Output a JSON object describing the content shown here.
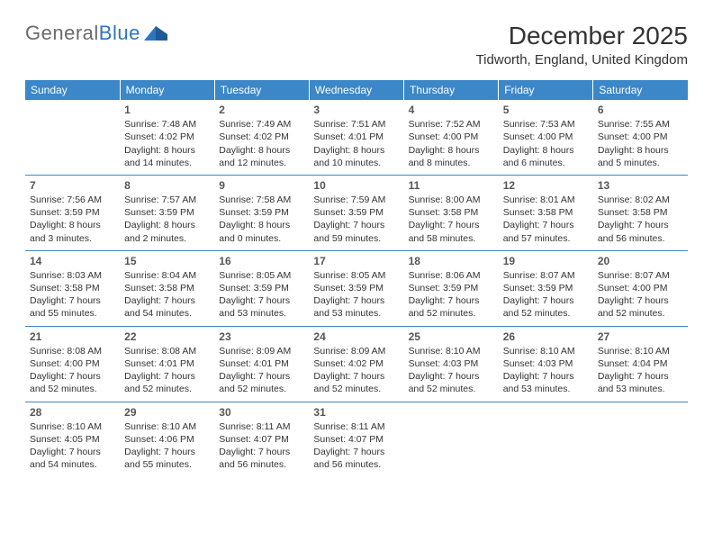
{
  "logo": {
    "text1": "General",
    "text2": "Blue"
  },
  "title": "December 2025",
  "location": "Tidworth, England, United Kingdom",
  "header_bg": "#3b87c8",
  "header_text_color": "#ffffff",
  "border_color": "#3b87c8",
  "day_headers": [
    "Sunday",
    "Monday",
    "Tuesday",
    "Wednesday",
    "Thursday",
    "Friday",
    "Saturday"
  ],
  "weeks": [
    [
      null,
      {
        "n": "1",
        "sr": "Sunrise: 7:48 AM",
        "ss": "Sunset: 4:02 PM",
        "dl": "Daylight: 8 hours and 14 minutes."
      },
      {
        "n": "2",
        "sr": "Sunrise: 7:49 AM",
        "ss": "Sunset: 4:02 PM",
        "dl": "Daylight: 8 hours and 12 minutes."
      },
      {
        "n": "3",
        "sr": "Sunrise: 7:51 AM",
        "ss": "Sunset: 4:01 PM",
        "dl": "Daylight: 8 hours and 10 minutes."
      },
      {
        "n": "4",
        "sr": "Sunrise: 7:52 AM",
        "ss": "Sunset: 4:00 PM",
        "dl": "Daylight: 8 hours and 8 minutes."
      },
      {
        "n": "5",
        "sr": "Sunrise: 7:53 AM",
        "ss": "Sunset: 4:00 PM",
        "dl": "Daylight: 8 hours and 6 minutes."
      },
      {
        "n": "6",
        "sr": "Sunrise: 7:55 AM",
        "ss": "Sunset: 4:00 PM",
        "dl": "Daylight: 8 hours and 5 minutes."
      }
    ],
    [
      {
        "n": "7",
        "sr": "Sunrise: 7:56 AM",
        "ss": "Sunset: 3:59 PM",
        "dl": "Daylight: 8 hours and 3 minutes."
      },
      {
        "n": "8",
        "sr": "Sunrise: 7:57 AM",
        "ss": "Sunset: 3:59 PM",
        "dl": "Daylight: 8 hours and 2 minutes."
      },
      {
        "n": "9",
        "sr": "Sunrise: 7:58 AM",
        "ss": "Sunset: 3:59 PM",
        "dl": "Daylight: 8 hours and 0 minutes."
      },
      {
        "n": "10",
        "sr": "Sunrise: 7:59 AM",
        "ss": "Sunset: 3:59 PM",
        "dl": "Daylight: 7 hours and 59 minutes."
      },
      {
        "n": "11",
        "sr": "Sunrise: 8:00 AM",
        "ss": "Sunset: 3:58 PM",
        "dl": "Daylight: 7 hours and 58 minutes."
      },
      {
        "n": "12",
        "sr": "Sunrise: 8:01 AM",
        "ss": "Sunset: 3:58 PM",
        "dl": "Daylight: 7 hours and 57 minutes."
      },
      {
        "n": "13",
        "sr": "Sunrise: 8:02 AM",
        "ss": "Sunset: 3:58 PM",
        "dl": "Daylight: 7 hours and 56 minutes."
      }
    ],
    [
      {
        "n": "14",
        "sr": "Sunrise: 8:03 AM",
        "ss": "Sunset: 3:58 PM",
        "dl": "Daylight: 7 hours and 55 minutes."
      },
      {
        "n": "15",
        "sr": "Sunrise: 8:04 AM",
        "ss": "Sunset: 3:58 PM",
        "dl": "Daylight: 7 hours and 54 minutes."
      },
      {
        "n": "16",
        "sr": "Sunrise: 8:05 AM",
        "ss": "Sunset: 3:59 PM",
        "dl": "Daylight: 7 hours and 53 minutes."
      },
      {
        "n": "17",
        "sr": "Sunrise: 8:05 AM",
        "ss": "Sunset: 3:59 PM",
        "dl": "Daylight: 7 hours and 53 minutes."
      },
      {
        "n": "18",
        "sr": "Sunrise: 8:06 AM",
        "ss": "Sunset: 3:59 PM",
        "dl": "Daylight: 7 hours and 52 minutes."
      },
      {
        "n": "19",
        "sr": "Sunrise: 8:07 AM",
        "ss": "Sunset: 3:59 PM",
        "dl": "Daylight: 7 hours and 52 minutes."
      },
      {
        "n": "20",
        "sr": "Sunrise: 8:07 AM",
        "ss": "Sunset: 4:00 PM",
        "dl": "Daylight: 7 hours and 52 minutes."
      }
    ],
    [
      {
        "n": "21",
        "sr": "Sunrise: 8:08 AM",
        "ss": "Sunset: 4:00 PM",
        "dl": "Daylight: 7 hours and 52 minutes."
      },
      {
        "n": "22",
        "sr": "Sunrise: 8:08 AM",
        "ss": "Sunset: 4:01 PM",
        "dl": "Daylight: 7 hours and 52 minutes."
      },
      {
        "n": "23",
        "sr": "Sunrise: 8:09 AM",
        "ss": "Sunset: 4:01 PM",
        "dl": "Daylight: 7 hours and 52 minutes."
      },
      {
        "n": "24",
        "sr": "Sunrise: 8:09 AM",
        "ss": "Sunset: 4:02 PM",
        "dl": "Daylight: 7 hours and 52 minutes."
      },
      {
        "n": "25",
        "sr": "Sunrise: 8:10 AM",
        "ss": "Sunset: 4:03 PM",
        "dl": "Daylight: 7 hours and 52 minutes."
      },
      {
        "n": "26",
        "sr": "Sunrise: 8:10 AM",
        "ss": "Sunset: 4:03 PM",
        "dl": "Daylight: 7 hours and 53 minutes."
      },
      {
        "n": "27",
        "sr": "Sunrise: 8:10 AM",
        "ss": "Sunset: 4:04 PM",
        "dl": "Daylight: 7 hours and 53 minutes."
      }
    ],
    [
      {
        "n": "28",
        "sr": "Sunrise: 8:10 AM",
        "ss": "Sunset: 4:05 PM",
        "dl": "Daylight: 7 hours and 54 minutes."
      },
      {
        "n": "29",
        "sr": "Sunrise: 8:10 AM",
        "ss": "Sunset: 4:06 PM",
        "dl": "Daylight: 7 hours and 55 minutes."
      },
      {
        "n": "30",
        "sr": "Sunrise: 8:11 AM",
        "ss": "Sunset: 4:07 PM",
        "dl": "Daylight: 7 hours and 56 minutes."
      },
      {
        "n": "31",
        "sr": "Sunrise: 8:11 AM",
        "ss": "Sunset: 4:07 PM",
        "dl": "Daylight: 7 hours and 56 minutes."
      },
      null,
      null,
      null
    ]
  ]
}
